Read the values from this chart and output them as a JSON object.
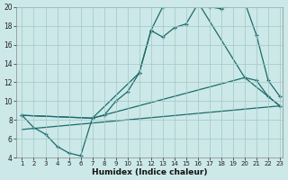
{
  "xlabel": "Humidex (Indice chaleur)",
  "bg_color": "#cde8e8",
  "grid_color": "#a0c8c8",
  "line_color": "#1a6b6b",
  "xlim": [
    1,
    23
  ],
  "ylim": [
    4,
    20
  ],
  "xticks": [
    1,
    2,
    3,
    4,
    5,
    6,
    7,
    8,
    9,
    10,
    11,
    12,
    13,
    14,
    15,
    16,
    17,
    18,
    19,
    20,
    21,
    22,
    23
  ],
  "yticks": [
    4,
    6,
    8,
    10,
    12,
    14,
    16,
    18,
    20
  ],
  "line1_x": [
    1,
    2,
    3,
    4,
    5,
    6,
    7,
    8,
    9,
    10,
    11,
    12,
    13,
    14,
    15,
    16,
    17,
    18,
    19,
    20,
    21,
    22,
    23
  ],
  "line1_y": [
    8.5,
    7.2,
    6.5,
    5.2,
    4.5,
    4.2,
    8.2,
    8.5,
    10.0,
    11.0,
    13.0,
    17.5,
    16.8,
    17.8,
    18.2,
    20.3,
    20.0,
    19.8,
    20.3,
    20.5,
    17.0,
    12.2,
    10.5
  ],
  "line2_x": [
    1,
    7,
    11,
    12,
    13,
    14,
    15,
    16,
    20,
    21,
    22,
    23
  ],
  "line2_y": [
    8.5,
    8.2,
    13.0,
    17.5,
    20.0,
    20.3,
    20.5,
    20.5,
    12.5,
    12.2,
    10.5,
    9.5
  ],
  "line3_x": [
    1,
    7,
    20,
    23
  ],
  "line3_y": [
    8.5,
    8.2,
    12.5,
    9.5
  ],
  "line4_x": [
    1,
    23
  ],
  "line4_y": [
    7.0,
    9.5
  ]
}
